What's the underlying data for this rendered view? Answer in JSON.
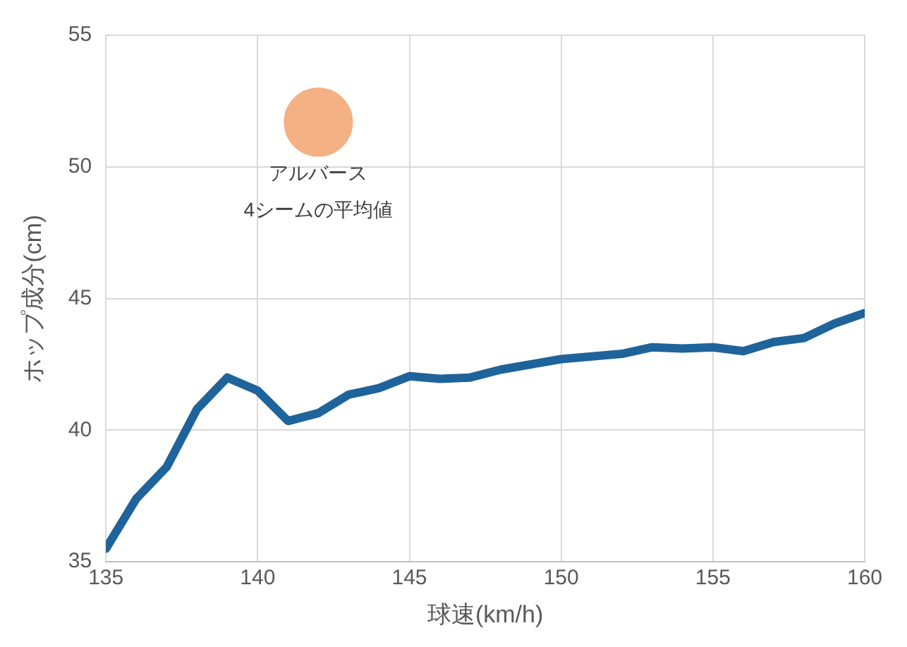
{
  "chart_data": {
    "type": "line",
    "xlabel": "球速(km/h)",
    "ylabel": "ホップ成分(cm)",
    "x": [
      135,
      136,
      137,
      138,
      139,
      140,
      141,
      142,
      143,
      144,
      145,
      146,
      147,
      148,
      149,
      150,
      151,
      152,
      153,
      154,
      155,
      156,
      157,
      158,
      159,
      160
    ],
    "series": [
      {
        "color": "#1f639b",
        "values": [
          35.5,
          37.4,
          38.6,
          40.8,
          42.0,
          41.5,
          40.35,
          40.65,
          41.35,
          41.6,
          42.05,
          41.95,
          42.0,
          42.3,
          42.5,
          42.7,
          42.8,
          42.9,
          43.15,
          43.1,
          43.15,
          43.0,
          43.35,
          43.5,
          44.05,
          44.45
        ]
      },
      {
        "type": "scatter",
        "x": [
          142
        ],
        "color": "#f4b183",
        "marker": "circle",
        "values": [
          51.7
        ]
      }
    ],
    "annotations": [
      {
        "text": "アルバース\n4シームの平均値",
        "x": 142,
        "y": 51.7
      }
    ],
    "xlim": [
      135,
      160
    ],
    "xticks": [
      135,
      140,
      145,
      150,
      155,
      160
    ],
    "ylim": [
      35,
      55
    ],
    "yticks": [
      35,
      40,
      45,
      50,
      55
    ],
    "grid": true,
    "legend": false,
    "marker": "none",
    "line_style": "solid"
  }
}
